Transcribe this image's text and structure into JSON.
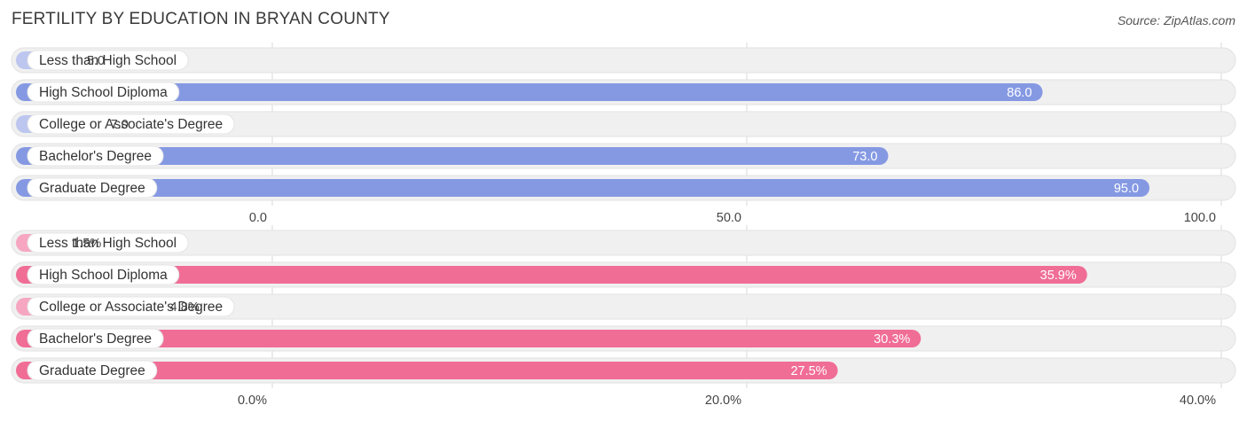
{
  "header": {
    "title": "FERTILITY BY EDUCATION IN BRYAN COUNTY",
    "source": "Source: ZipAtlas.com"
  },
  "colors": {
    "blue_strong": "#8599e3",
    "blue_light": "#bcc6ef",
    "pink_strong": "#f06d96",
    "pink_light": "#f6a6c1",
    "track": "#f0f0f0",
    "grid": "#d8d8d8"
  },
  "chart_data": [
    {
      "type": "bar",
      "orientation": "horizontal",
      "categories": [
        "Less than High School",
        "High School Diploma",
        "College or Associate's Degree",
        "Bachelor's Degree",
        "Graduate Degree"
      ],
      "values": [
        5.0,
        86.0,
        7.0,
        73.0,
        95.0
      ],
      "value_labels": [
        "5.0",
        "86.0",
        "7.0",
        "73.0",
        "95.0"
      ],
      "xlim": [
        0,
        100
      ],
      "ticks": [
        0,
        50,
        100
      ],
      "tick_labels": [
        "0.0",
        "50.0",
        "100.0"
      ],
      "grid": true
    },
    {
      "type": "bar",
      "orientation": "horizontal",
      "categories": [
        "Less than High School",
        "High School Diploma",
        "College or Associate's Degree",
        "Bachelor's Degree",
        "Graduate Degree"
      ],
      "values": [
        1.5,
        35.9,
        4.8,
        30.3,
        27.5
      ],
      "value_labels": [
        "1.5%",
        "35.9%",
        "4.8%",
        "30.3%",
        "27.5%"
      ],
      "xlim": [
        0,
        40
      ],
      "ticks": [
        0,
        20,
        40
      ],
      "tick_labels": [
        "0.0%",
        "20.0%",
        "40.0%"
      ],
      "grid": true
    }
  ]
}
